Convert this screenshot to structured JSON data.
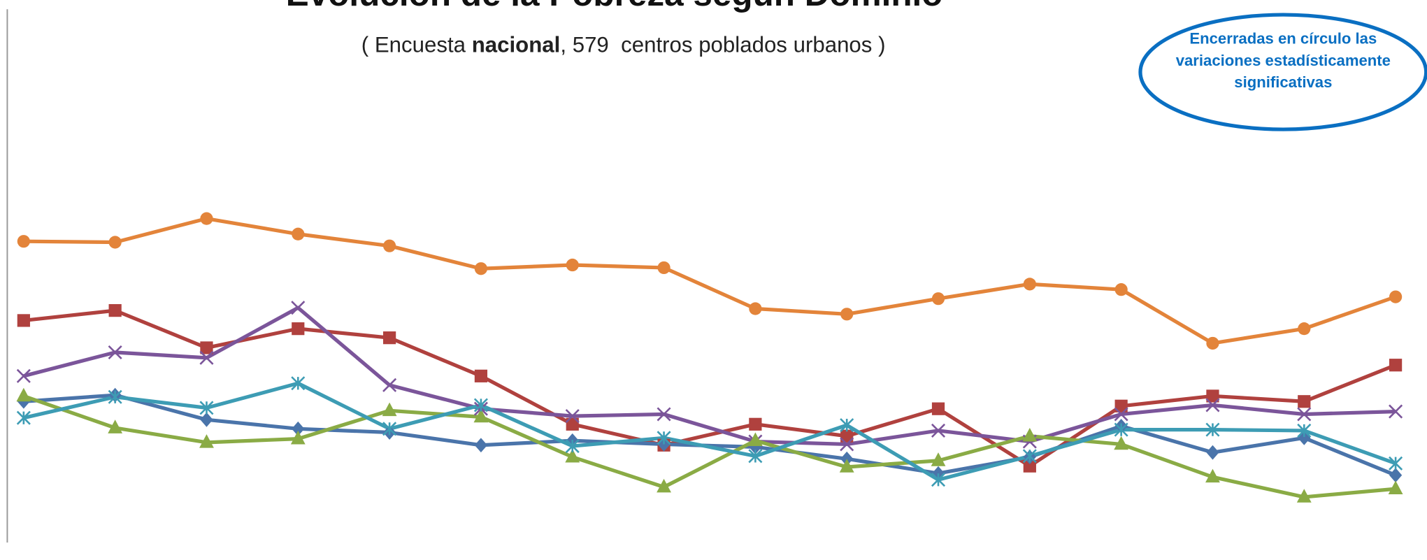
{
  "chart_data": {
    "type": "line",
    "title": "Evolución de la Pobreza según Dominio",
    "subtitle": {
      "before": "( Encuesta ",
      "bold": "nacional",
      "after": ", 579  centros poblados urbanos )"
    },
    "annotation": [
      "Encerradas en círculo las",
      "variaciones estadísticamente",
      "significativas"
    ],
    "categories": [
      null,
      null,
      null,
      null,
      null,
      null,
      null,
      null,
      null,
      null,
      null,
      null,
      null,
      null,
      null,
      null
    ],
    "ylim": [
      0,
      120
    ],
    "series": [
      {
        "color": "#e3843a",
        "marker": "circle",
        "values": [
          67,
          66.8,
          72,
          68.6,
          66,
          61,
          61.8,
          61.2,
          52.2,
          51,
          54.4,
          57.6,
          56.4,
          44.6,
          47.8,
          54.8
        ]
      },
      {
        "color": "#b0413e",
        "marker": "square",
        "values": [
          49.6,
          51.8,
          43.6,
          47.8,
          45.8,
          37.4,
          26.8,
          22.2,
          26.8,
          24.2,
          30.2,
          17.6,
          30.8,
          33,
          31.8,
          39.8
        ]
      },
      {
        "color": "#7b559a",
        "marker": "x",
        "values": [
          37.4,
          42.6,
          41.4,
          52.4,
          35.4,
          30.2,
          28.6,
          29,
          23,
          22.4,
          25.4,
          23,
          29,
          31,
          29,
          29.6
        ]
      },
      {
        "color": "#4a74aa",
        "marker": "diamond",
        "values": [
          31.8,
          33.2,
          27.8,
          25.8,
          25,
          22.2,
          23.2,
          22.4,
          21.8,
          19.2,
          16,
          19.6,
          26.4,
          20.6,
          23.8,
          15.6
        ]
      },
      {
        "color": "#8aab45",
        "marker": "triangle",
        "values": [
          33,
          26,
          22.8,
          23.6,
          29.8,
          28.4,
          19.6,
          13,
          23.2,
          17.4,
          18.8,
          24.2,
          22.4,
          15.2,
          10.8,
          12.6
        ]
      },
      {
        "color": "#3d9cb4",
        "marker": "star",
        "values": [
          28.2,
          32.8,
          30.4,
          35.8,
          25.8,
          31,
          22,
          23.8,
          19.8,
          26.6,
          14.6,
          19.8,
          25.6,
          25.6,
          25.4,
          18.2
        ]
      }
    ]
  }
}
